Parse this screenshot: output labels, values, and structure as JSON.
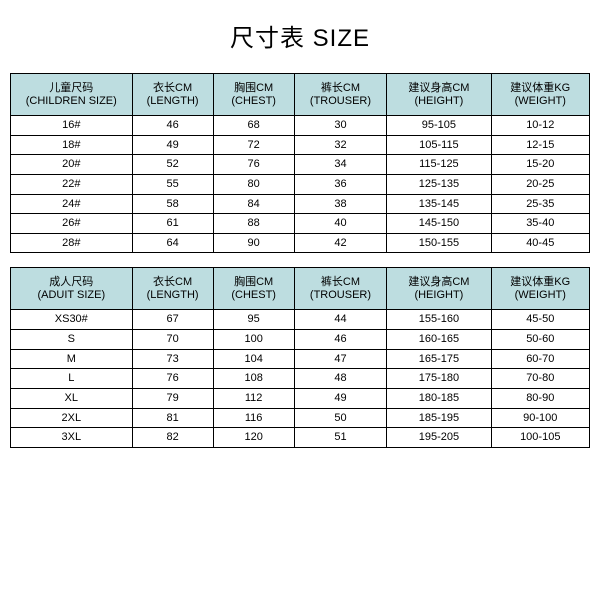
{
  "title": "尺寸表 SIZE",
  "header_bg": "#bddde0",
  "border_color": "#000000",
  "children_table": {
    "columns": [
      {
        "cn": "儿童尺码",
        "en": "(CHILDREN SIZE)"
      },
      {
        "cn": "衣长CM",
        "en": "(LENGTH)"
      },
      {
        "cn": "胸围CM",
        "en": "(CHEST)"
      },
      {
        "cn": "裤长CM",
        "en": "(TROUSER)"
      },
      {
        "cn": "建议身高CM",
        "en": "(HEIGHT)"
      },
      {
        "cn": "建议体重KG",
        "en": "(WEIGHT)"
      }
    ],
    "rows": [
      [
        "16#",
        "46",
        "68",
        "30",
        "95-105",
        "10-12"
      ],
      [
        "18#",
        "49",
        "72",
        "32",
        "105-115",
        "12-15"
      ],
      [
        "20#",
        "52",
        "76",
        "34",
        "115-125",
        "15-20"
      ],
      [
        "22#",
        "55",
        "80",
        "36",
        "125-135",
        "20-25"
      ],
      [
        "24#",
        "58",
        "84",
        "38",
        "135-145",
        "25-35"
      ],
      [
        "26#",
        "61",
        "88",
        "40",
        "145-150",
        "35-40"
      ],
      [
        "28#",
        "64",
        "90",
        "42",
        "150-155",
        "40-45"
      ]
    ]
  },
  "adult_table": {
    "columns": [
      {
        "cn": "成人尺码",
        "en": "(ADUIT SIZE)"
      },
      {
        "cn": "衣长CM",
        "en": "(LENGTH)"
      },
      {
        "cn": "胸围CM",
        "en": "(CHEST)"
      },
      {
        "cn": "裤长CM",
        "en": "(TROUSER)"
      },
      {
        "cn": "建议身高CM",
        "en": "(HEIGHT)"
      },
      {
        "cn": "建议体重KG",
        "en": "(WEIGHT)"
      }
    ],
    "rows": [
      [
        "XS30#",
        "67",
        "95",
        "44",
        "155-160",
        "45-50"
      ],
      [
        "S",
        "70",
        "100",
        "46",
        "160-165",
        "50-60"
      ],
      [
        "M",
        "73",
        "104",
        "47",
        "165-175",
        "60-70"
      ],
      [
        "L",
        "76",
        "108",
        "48",
        "175-180",
        "70-80"
      ],
      [
        "XL",
        "79",
        "112",
        "49",
        "180-185",
        "80-90"
      ],
      [
        "2XL",
        "81",
        "116",
        "50",
        "185-195",
        "90-100"
      ],
      [
        "3XL",
        "82",
        "120",
        "51",
        "195-205",
        "100-105"
      ]
    ]
  }
}
